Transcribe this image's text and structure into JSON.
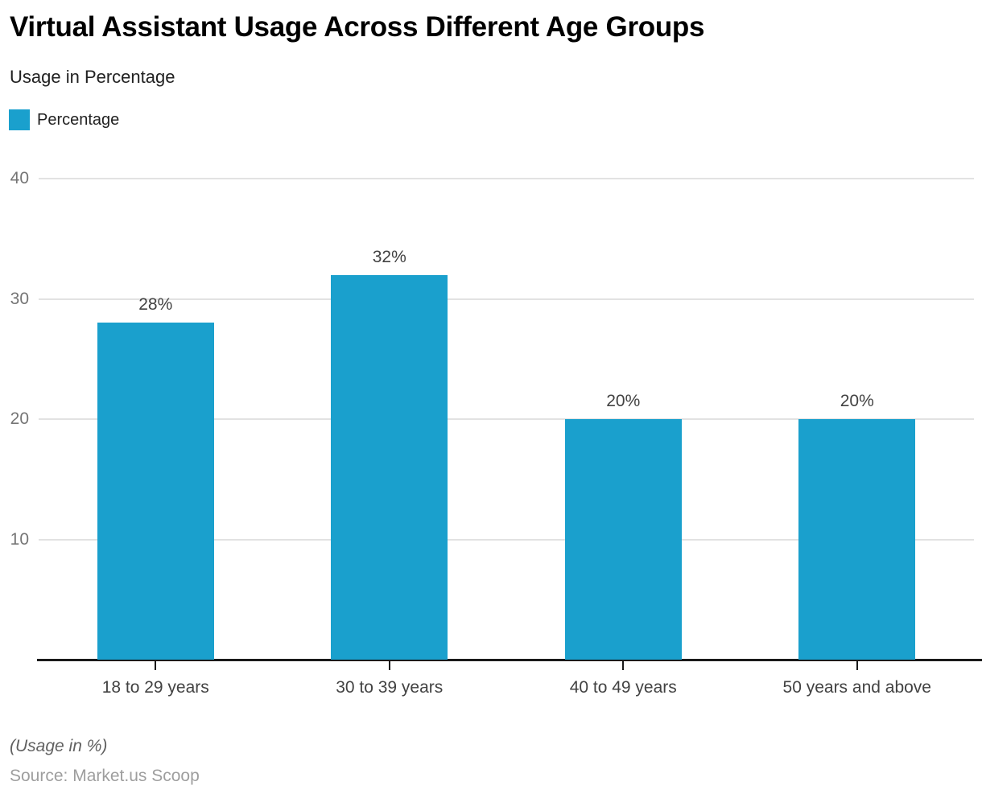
{
  "header": {
    "title": "Virtual Assistant Usage Across Different Age Groups",
    "subtitle": "Usage in Percentage"
  },
  "legend": {
    "items": [
      {
        "label": "Percentage",
        "color": "#1aa0cd"
      }
    ]
  },
  "chart_data": {
    "type": "bar",
    "title": "Virtual Assistant Usage Across Different Age Groups",
    "subtitle": "Usage in Percentage",
    "categories": [
      "18 to 29 years",
      "30 to 39 years",
      "40 to 49 years",
      "50 years and above"
    ],
    "series": [
      {
        "name": "Percentage",
        "values": [
          28,
          32,
          20,
          20
        ],
        "color": "#1aa0cd"
      }
    ],
    "value_labels": [
      "28%",
      "32%",
      "20%",
      "20%"
    ],
    "xlabel": "",
    "ylabel": "",
    "ylim": [
      0,
      40
    ],
    "yticks": [
      10,
      20,
      30,
      40
    ],
    "grid": true,
    "legend_position": "top-left"
  },
  "footer": {
    "note": "(Usage in %)",
    "source": "Source: Market.us Scoop"
  },
  "colors": {
    "bar": "#1aa0cd",
    "grid": "#e2e2e2",
    "axis": "#1a1a1a",
    "ytick_label": "#757575",
    "data_label": "#424242",
    "category_label": "#424242",
    "note": "#616161",
    "source": "#9e9e9e",
    "background": "#ffffff"
  }
}
